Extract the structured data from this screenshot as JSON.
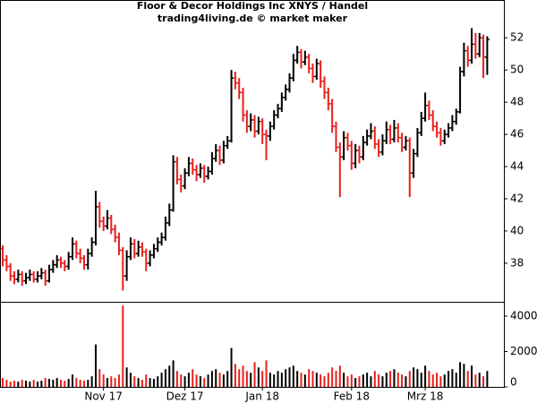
{
  "chart_data": {
    "type": "ohlc",
    "title": "Floor & Decor Holdings Inc XNYS / Handel",
    "subtitle": "trading4living.de © market maker",
    "up_color": "#000000",
    "down_color": "#e8201c",
    "ohlc": [
      [
        38.9,
        39.1,
        37.8,
        38.2
      ],
      [
        38.2,
        38.5,
        37.5,
        37.8
      ],
      [
        37.8,
        38.0,
        36.9,
        37.2
      ],
      [
        37.2,
        37.5,
        36.7,
        37.0
      ],
      [
        37.0,
        37.6,
        36.8,
        37.3
      ],
      [
        37.3,
        37.5,
        36.6,
        36.9
      ],
      [
        36.9,
        37.4,
        36.7,
        37.1
      ],
      [
        37.1,
        37.6,
        36.9,
        37.3
      ],
      [
        37.3,
        37.5,
        36.8,
        37.0
      ],
      [
        37.0,
        37.5,
        36.8,
        37.2
      ],
      [
        37.2,
        37.7,
        37.0,
        37.4
      ],
      [
        37.4,
        37.6,
        36.6,
        36.9
      ],
      [
        36.9,
        37.9,
        36.8,
        37.6
      ],
      [
        37.6,
        38.2,
        37.4,
        37.9
      ],
      [
        37.9,
        38.5,
        37.7,
        38.2
      ],
      [
        38.2,
        38.4,
        37.7,
        38.0
      ],
      [
        38.0,
        38.2,
        37.5,
        37.8
      ],
      [
        37.8,
        38.7,
        37.6,
        38.4
      ],
      [
        38.4,
        39.6,
        38.2,
        39.2
      ],
      [
        39.2,
        39.4,
        38.3,
        38.6
      ],
      [
        38.6,
        38.9,
        38.0,
        38.3
      ],
      [
        38.3,
        38.5,
        37.6,
        37.9
      ],
      [
        37.9,
        38.9,
        37.6,
        38.6
      ],
      [
        38.6,
        39.6,
        38.4,
        39.3
      ],
      [
        39.3,
        42.5,
        39.1,
        41.5
      ],
      [
        41.5,
        41.8,
        40.2,
        40.6
      ],
      [
        40.6,
        40.9,
        40.0,
        40.3
      ],
      [
        40.3,
        41.3,
        40.1,
        40.8
      ],
      [
        40.8,
        41.0,
        39.8,
        40.1
      ],
      [
        40.1,
        40.4,
        39.3,
        39.6
      ],
      [
        39.6,
        39.9,
        38.5,
        38.8
      ],
      [
        38.8,
        39.0,
        36.3,
        37.2
      ],
      [
        37.2,
        38.8,
        36.9,
        38.4
      ],
      [
        38.4,
        39.6,
        38.2,
        39.2
      ],
      [
        39.2,
        39.5,
        38.3,
        38.6
      ],
      [
        38.6,
        39.4,
        38.4,
        39.0
      ],
      [
        39.0,
        39.3,
        38.4,
        38.7
      ],
      [
        38.7,
        38.9,
        37.5,
        38.0
      ],
      [
        38.0,
        38.8,
        37.8,
        38.5
      ],
      [
        38.5,
        39.2,
        38.3,
        38.9
      ],
      [
        38.9,
        39.6,
        38.7,
        39.3
      ],
      [
        39.3,
        39.9,
        39.1,
        39.6
      ],
      [
        39.6,
        40.9,
        39.4,
        40.5
      ],
      [
        40.5,
        41.7,
        40.3,
        41.3
      ],
      [
        41.3,
        44.7,
        41.2,
        44.3
      ],
      [
        44.3,
        44.6,
        42.9,
        43.2
      ],
      [
        43.2,
        43.5,
        42.4,
        42.8
      ],
      [
        42.8,
        43.9,
        42.6,
        43.6
      ],
      [
        43.6,
        44.6,
        43.4,
        44.2
      ],
      [
        44.2,
        44.5,
        43.5,
        43.8
      ],
      [
        43.8,
        44.1,
        43.1,
        43.5
      ],
      [
        43.5,
        44.2,
        43.3,
        43.9
      ],
      [
        43.9,
        44.1,
        43.0,
        43.4
      ],
      [
        43.4,
        44.0,
        43.2,
        43.7
      ],
      [
        43.7,
        44.9,
        43.5,
        44.5
      ],
      [
        44.5,
        45.4,
        44.3,
        45.0
      ],
      [
        45.0,
        45.3,
        44.1,
        44.4
      ],
      [
        44.4,
        45.6,
        44.2,
        45.3
      ],
      [
        45.3,
        45.9,
        45.1,
        45.6
      ],
      [
        45.6,
        50.0,
        45.5,
        49.5
      ],
      [
        49.5,
        49.9,
        48.8,
        49.2
      ],
      [
        49.2,
        49.5,
        48.2,
        48.6
      ],
      [
        48.6,
        48.9,
        46.8,
        47.2
      ],
      [
        47.2,
        47.5,
        46.1,
        46.5
      ],
      [
        46.5,
        47.3,
        46.2,
        46.9
      ],
      [
        46.9,
        47.2,
        45.8,
        46.2
      ],
      [
        46.2,
        47.1,
        46.0,
        46.8
      ],
      [
        46.8,
        47.0,
        45.4,
        46.0
      ],
      [
        46.0,
        46.3,
        44.4,
        45.9
      ],
      [
        45.9,
        46.8,
        45.6,
        46.5
      ],
      [
        46.5,
        47.5,
        46.3,
        47.2
      ],
      [
        47.2,
        47.9,
        47.0,
        47.6
      ],
      [
        47.6,
        48.6,
        47.4,
        48.3
      ],
      [
        48.3,
        49.1,
        48.1,
        48.8
      ],
      [
        48.8,
        49.8,
        48.6,
        49.5
      ],
      [
        49.5,
        51.0,
        49.3,
        50.6
      ],
      [
        50.6,
        51.5,
        50.4,
        51.1
      ],
      [
        51.1,
        51.3,
        50.1,
        50.5
      ],
      [
        50.5,
        51.2,
        50.3,
        50.8
      ],
      [
        50.8,
        51.0,
        49.8,
        50.1
      ],
      [
        50.1,
        50.4,
        49.2,
        49.6
      ],
      [
        49.6,
        50.7,
        49.4,
        50.4
      ],
      [
        50.4,
        50.6,
        48.9,
        49.3
      ],
      [
        49.3,
        49.6,
        48.2,
        48.6
      ],
      [
        48.6,
        48.9,
        47.5,
        47.9
      ],
      [
        47.9,
        48.2,
        46.1,
        46.5
      ],
      [
        46.5,
        46.8,
        44.9,
        45.2
      ],
      [
        45.2,
        45.5,
        42.1,
        44.6
      ],
      [
        44.6,
        46.2,
        44.4,
        45.8
      ],
      [
        45.8,
        46.1,
        45.0,
        45.3
      ],
      [
        45.3,
        45.6,
        43.8,
        44.2
      ],
      [
        44.2,
        45.4,
        43.9,
        45.0
      ],
      [
        45.0,
        45.3,
        44.2,
        44.6
      ],
      [
        44.6,
        45.9,
        44.4,
        45.5
      ],
      [
        45.5,
        46.3,
        45.3,
        45.9
      ],
      [
        45.9,
        46.7,
        45.7,
        46.2
      ],
      [
        46.2,
        46.5,
        45.1,
        45.4
      ],
      [
        45.4,
        45.7,
        44.6,
        44.9
      ],
      [
        44.9,
        46.0,
        44.7,
        45.6
      ],
      [
        45.6,
        46.8,
        45.4,
        46.3
      ],
      [
        46.3,
        46.6,
        45.4,
        45.7
      ],
      [
        45.7,
        46.9,
        45.5,
        46.4
      ],
      [
        46.4,
        46.7,
        45.5,
        45.8
      ],
      [
        45.8,
        46.1,
        44.9,
        45.2
      ],
      [
        45.2,
        45.9,
        45.0,
        45.6
      ],
      [
        45.6,
        45.8,
        42.1,
        43.6
      ],
      [
        43.6,
        45.1,
        43.3,
        44.8
      ],
      [
        44.8,
        46.4,
        44.6,
        46.1
      ],
      [
        46.1,
        47.4,
        45.9,
        47.0
      ],
      [
        47.0,
        48.6,
        46.8,
        47.8
      ],
      [
        47.8,
        48.1,
        46.9,
        47.2
      ],
      [
        47.2,
        47.5,
        46.2,
        46.5
      ],
      [
        46.5,
        46.8,
        45.8,
        46.1
      ],
      [
        46.1,
        46.4,
        45.3,
        45.6
      ],
      [
        45.6,
        46.3,
        45.4,
        46.0
      ],
      [
        46.0,
        46.7,
        45.8,
        46.4
      ],
      [
        46.4,
        47.2,
        46.2,
        46.8
      ],
      [
        46.8,
        47.6,
        46.6,
        47.4
      ],
      [
        47.4,
        50.2,
        47.3,
        49.9
      ],
      [
        49.9,
        51.7,
        49.6,
        51.2
      ],
      [
        51.2,
        51.5,
        50.2,
        50.6
      ],
      [
        50.6,
        52.6,
        50.4,
        51.6
      ],
      [
        51.6,
        52.3,
        50.7,
        51.0
      ],
      [
        51.0,
        52.3,
        50.8,
        52.0
      ],
      [
        52.0,
        52.2,
        49.5,
        50.8
      ],
      [
        50.8,
        52.1,
        49.7,
        51.9
      ]
    ],
    "volume": [
      500,
      400,
      300,
      350,
      300,
      400,
      350,
      300,
      400,
      300,
      350,
      500,
      450,
      400,
      500,
      400,
      350,
      450,
      700,
      500,
      400,
      350,
      400,
      600,
      2400,
      1000,
      700,
      500,
      600,
      500,
      700,
      4600,
      1100,
      800,
      600,
      500,
      400,
      700,
      500,
      450,
      600,
      800,
      1000,
      1200,
      1500,
      900,
      700,
      600,
      800,
      1000,
      700,
      600,
      500,
      700,
      900,
      1000,
      800,
      700,
      900,
      2200,
      1300,
      1000,
      1200,
      900,
      800,
      1400,
      1100,
      900,
      1500,
      800,
      700,
      900,
      800,
      1000,
      1100,
      1200,
      900,
      800,
      700,
      1000,
      900,
      800,
      700,
      600,
      800,
      1100,
      900,
      1200,
      800,
      600,
      700,
      500,
      600,
      700,
      800,
      600,
      900,
      700,
      600,
      800,
      900,
      1000,
      800,
      700,
      600,
      900,
      1100,
      1000,
      800,
      1200,
      900,
      700,
      800,
      600,
      700,
      900,
      1000,
      800,
      1400,
      1300,
      900,
      1200,
      700,
      800,
      600,
      900
    ],
    "xlim": [
      -0.7,
      129.3
    ],
    "xticks": [
      {
        "value": 26,
        "label": "Nov 17"
      },
      {
        "value": 47,
        "label": "Dez 17"
      },
      {
        "value": 67,
        "label": "Jan 18"
      },
      {
        "value": 90,
        "label": "Feb 18"
      },
      {
        "value": 109,
        "label": "Mrz 18"
      }
    ],
    "ylim": [
      35.6,
      54.35
    ],
    "yticks": [
      38,
      40,
      42,
      44,
      46,
      48,
      50,
      52
    ],
    "y2lim": [
      0,
      4760
    ],
    "y2ticks": [
      0,
      2000,
      4000
    ],
    "grid": false
  }
}
